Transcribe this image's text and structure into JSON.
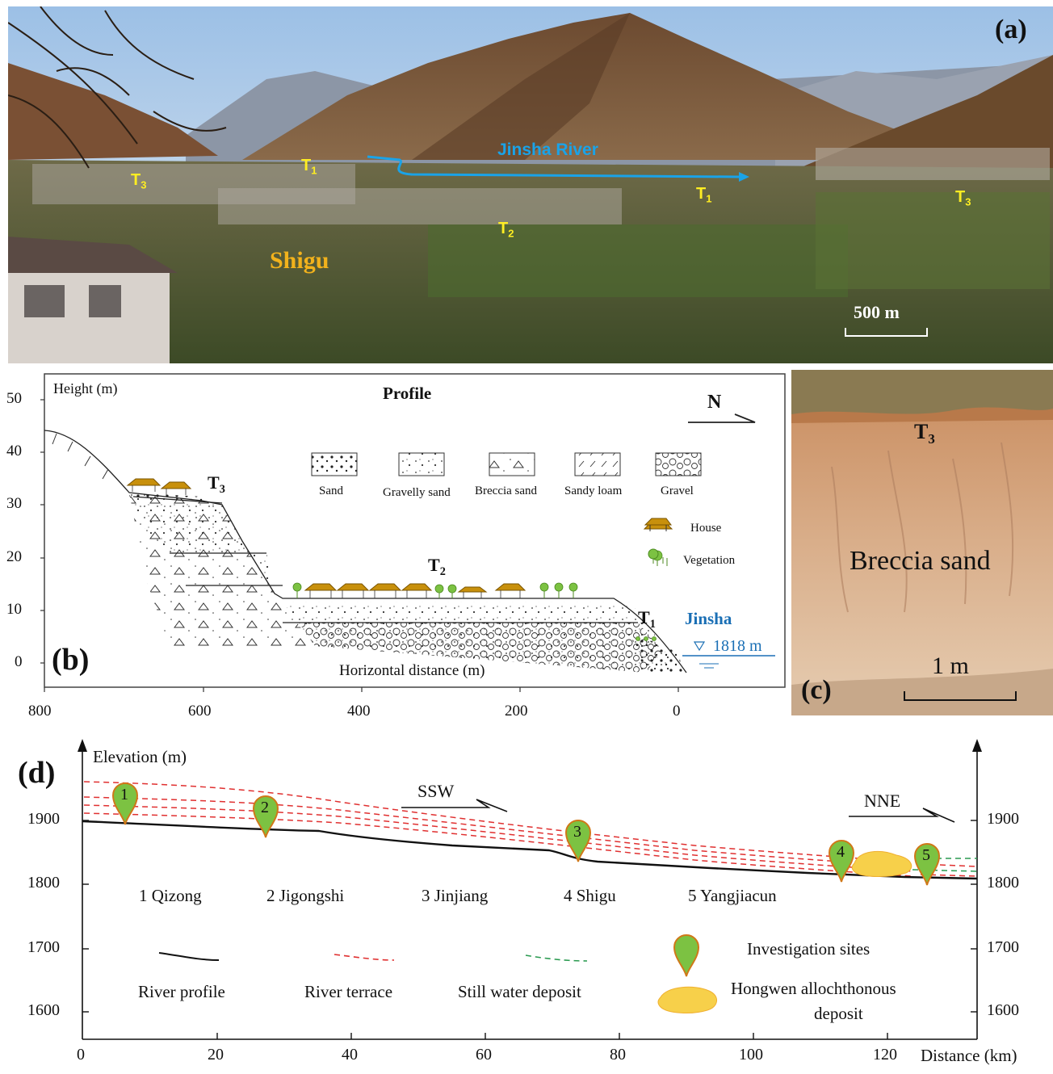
{
  "panel_a": {
    "label": "(a)",
    "river": "Jinsha River",
    "town": "Shigu",
    "terraces": [
      {
        "main": "T",
        "sub": "3"
      },
      {
        "main": "T",
        "sub": "1"
      },
      {
        "main": "T",
        "sub": "2"
      },
      {
        "main": "T",
        "sub": "1"
      },
      {
        "main": "T",
        "sub": "3"
      }
    ],
    "scale": "500 m"
  },
  "panel_b": {
    "label": "(b)",
    "title": "Profile",
    "ylabel": "Height (m)",
    "xlabel": "Horizontal distance (m)",
    "north": "N",
    "yticks": [
      "50",
      "40",
      "30",
      "20",
      "10",
      "0"
    ],
    "xticks": [
      "800",
      "600",
      "400",
      "200",
      "0"
    ],
    "legend": [
      "Sand",
      "Gravelly sand",
      "Breccia sand",
      "Sandy loam",
      "Gravel"
    ],
    "legend2": [
      "House",
      "Vegetation"
    ],
    "terraces": [
      {
        "main": "T",
        "sub": "3"
      },
      {
        "main": "T",
        "sub": "2"
      },
      {
        "main": "T",
        "sub": "1"
      }
    ],
    "river": "Jinsha",
    "water_level": "1818 m"
  },
  "panel_c": {
    "label": "(c)",
    "terrace": {
      "main": "T",
      "sub": "3"
    },
    "material": "Breccia sand",
    "scale": "1 m"
  },
  "panel_d": {
    "label": "(d)",
    "ylabel": "Elevation (m)",
    "xlabel": "Distance (km)",
    "yticks": [
      "1900",
      "1800",
      "1700",
      "1600"
    ],
    "xticks": [
      "0",
      "20",
      "40",
      "60",
      "80",
      "100",
      "120"
    ],
    "dir_left": "SSW",
    "dir_right": "NNE",
    "sites": [
      "1 Qizong",
      "2 Jigongshi",
      "3 Jinjiang",
      "4 Shigu",
      "5 Yangjiacun"
    ],
    "markers": [
      "1",
      "2",
      "3",
      "4",
      "5"
    ],
    "legend": {
      "river_profile": "River profile",
      "river_terrace": "River terrace",
      "still_water": "Still water deposit",
      "sites": "Investigation sites",
      "hongwen1": "Hongwen allochthonous",
      "hongwen2": "deposit"
    },
    "colors": {
      "terrace": "#e03030",
      "still_water": "#2a9a50",
      "marker": "#7cc242",
      "deposit": "#f7d04a"
    }
  }
}
